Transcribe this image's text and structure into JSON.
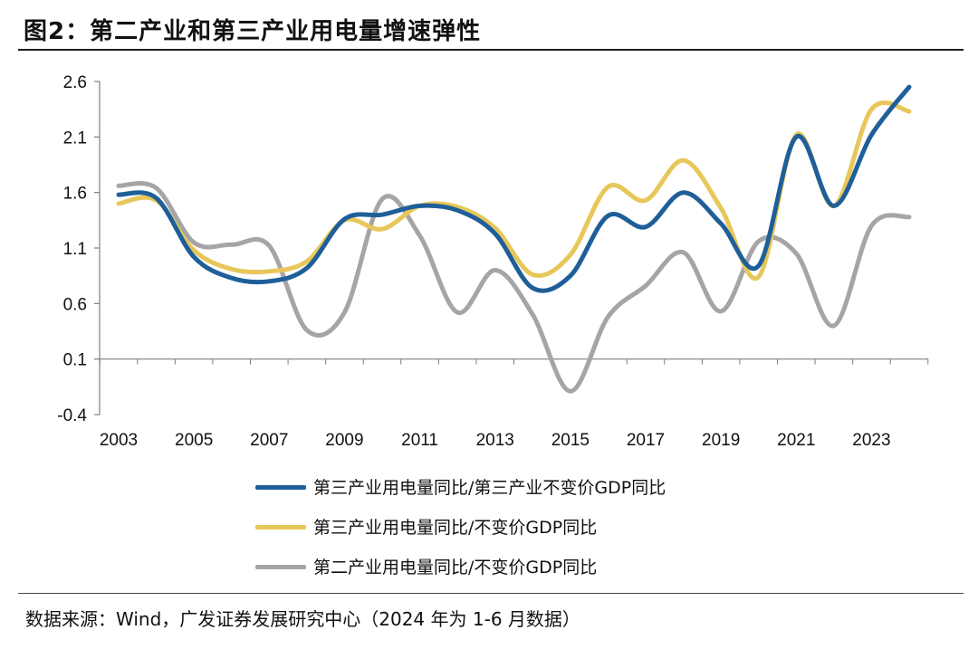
{
  "header": {
    "title": "图2：第二产业和第三产业用电量增速弹性"
  },
  "footer": {
    "source": "数据来源：Wind，广发证券发展研究中心（2024 年为 1-6 月数据）"
  },
  "chart_data": {
    "type": "line",
    "title": "图2：第二产业和第三产业用电量增速弹性",
    "xlabel": "",
    "ylabel": "",
    "ylim": [
      -0.4,
      2.6
    ],
    "yticks": [
      "2.6",
      "2.1",
      "1.6",
      "1.1",
      "0.6",
      "0.1",
      "-0.4"
    ],
    "xticks": [
      "2003",
      "2005",
      "2007",
      "2009",
      "2011",
      "2013",
      "2015",
      "2017",
      "2019",
      "2021",
      "2023"
    ],
    "x": [
      2003,
      2004,
      2005,
      2006,
      2007,
      2008,
      2009,
      2010,
      2011,
      2012,
      2013,
      2014,
      2015,
      2016,
      2017,
      2018,
      2019,
      2020,
      2021,
      2022,
      2023,
      2024
    ],
    "grid": false,
    "legend_position": "bottom",
    "series": [
      {
        "name": "第三产业用电量同比/第三产业不变价GDP同比",
        "color": "#1F5F99",
        "values": [
          1.58,
          1.55,
          1.02,
          0.83,
          0.8,
          0.92,
          1.36,
          1.4,
          1.48,
          1.44,
          1.23,
          0.74,
          0.85,
          1.39,
          1.29,
          1.6,
          1.32,
          0.94,
          2.1,
          1.48,
          2.12,
          2.55
        ]
      },
      {
        "name": "第三产业用电量同比/不变价GDP同比",
        "color": "#E8C75A",
        "values": [
          1.5,
          1.53,
          1.08,
          0.91,
          0.89,
          0.98,
          1.35,
          1.27,
          1.48,
          1.47,
          1.28,
          0.86,
          1.04,
          1.65,
          1.53,
          1.89,
          1.46,
          0.84,
          2.12,
          1.48,
          2.35,
          2.33
        ]
      },
      {
        "name": "第二产业用电量同比/不变价GDP同比",
        "color": "#A5A5A5",
        "values": [
          1.66,
          1.64,
          1.15,
          1.13,
          1.12,
          0.36,
          0.52,
          1.54,
          1.21,
          0.52,
          0.9,
          0.5,
          -0.19,
          0.48,
          0.76,
          1.06,
          0.53,
          1.16,
          1.05,
          0.4,
          1.3,
          1.38
        ]
      }
    ]
  }
}
